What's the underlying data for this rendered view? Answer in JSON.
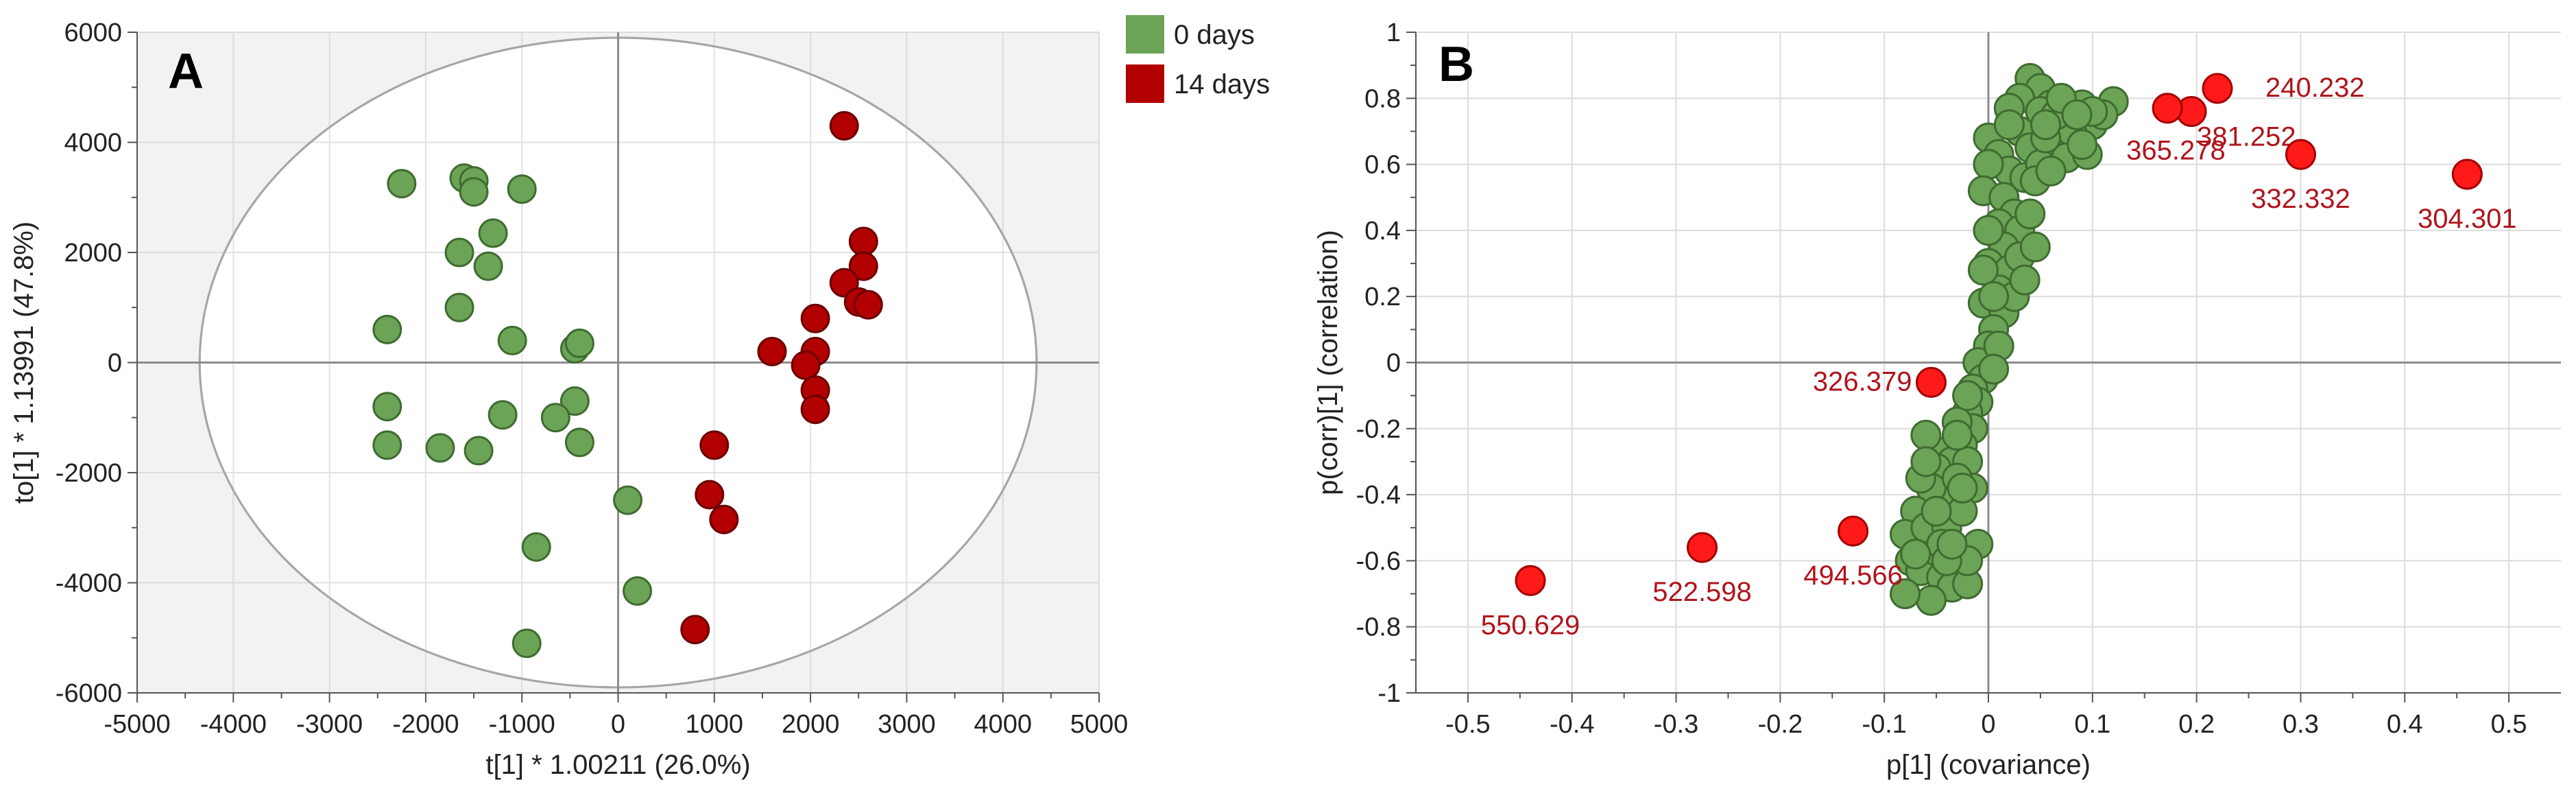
{
  "colors": {
    "group0": "#6ba357",
    "group0_stroke": "#3f6b30",
    "group14": "#b20000",
    "group14_stroke": "#6a0000",
    "highlight": "#ff1a1a",
    "highlight_stroke": "#a40000",
    "label": "#b0141c",
    "plot_bg": "#f2f2f2",
    "grid": "#dcdcdc",
    "axis_zero": "#8c8c8c",
    "ellipse": "#a6a6a6"
  },
  "legend": {
    "items": [
      {
        "label": "0 days",
        "color": "#6ba357"
      },
      {
        "label": "14 days",
        "color": "#b20000"
      }
    ]
  },
  "chart_data": [
    {
      "panel": "A",
      "type": "scatter",
      "xlabel": "t[1] * 1.00211 (26.0%)",
      "ylabel": "to[1] * 1.13991 (47.8%)",
      "xlim": [
        -5000,
        5000
      ],
      "ylim": [
        -6000,
        6000
      ],
      "xticks": [
        -5000,
        -4000,
        -3000,
        -2000,
        -1000,
        0,
        1000,
        2000,
        3000,
        4000,
        5000
      ],
      "yticks": [
        -6000,
        -4000,
        -2000,
        0,
        2000,
        4000,
        6000
      ],
      "ellipse": {
        "rx": 4350,
        "ry": 5900
      },
      "series": [
        {
          "name": "0 days",
          "points": [
            [
              -2250,
              3250
            ],
            [
              -1600,
              3350
            ],
            [
              -1500,
              3300
            ],
            [
              -1500,
              3100
            ],
            [
              -1000,
              3150
            ],
            [
              -1650,
              2000
            ],
            [
              -1300,
              2350
            ],
            [
              -1350,
              1750
            ],
            [
              -1650,
              1000
            ],
            [
              -2400,
              600
            ],
            [
              -1100,
              400
            ],
            [
              -450,
              250
            ],
            [
              -400,
              350
            ],
            [
              -2400,
              -800
            ],
            [
              -450,
              -700
            ],
            [
              -650,
              -1000
            ],
            [
              -1200,
              -950
            ],
            [
              -2400,
              -1500
            ],
            [
              -1850,
              -1550
            ],
            [
              -1450,
              -1600
            ],
            [
              -400,
              -1450
            ],
            [
              -850,
              -3350
            ],
            [
              -950,
              -5100
            ],
            [
              100,
              -2500
            ],
            [
              200,
              -4150
            ]
          ]
        },
        {
          "name": "14 days",
          "points": [
            [
              2350,
              4300
            ],
            [
              2550,
              2200
            ],
            [
              2550,
              1750
            ],
            [
              2350,
              1450
            ],
            [
              2500,
              1100
            ],
            [
              2600,
              1050
            ],
            [
              2050,
              800
            ],
            [
              1600,
              200
            ],
            [
              2050,
              200
            ],
            [
              1950,
              -50
            ],
            [
              2050,
              -500
            ],
            [
              2050,
              -850
            ],
            [
              1000,
              -1500
            ],
            [
              950,
              -2400
            ],
            [
              1100,
              -2850
            ],
            [
              800,
              -4850
            ]
          ]
        }
      ]
    },
    {
      "panel": "B",
      "type": "scatter",
      "xlabel": "p[1] (covariance)",
      "ylabel": "p(corr)[1] (correlation)",
      "xlim": [
        -0.55,
        0.55
      ],
      "ylim": [
        -1,
        1
      ],
      "xticks": [
        -0.5,
        -0.4,
        -0.3,
        -0.2,
        -0.1,
        0,
        0.1,
        0.2,
        0.3,
        0.4,
        0.5
      ],
      "yticks": [
        -1,
        -0.8,
        -0.6,
        -0.4,
        -0.2,
        0,
        0.2,
        0.4,
        0.6,
        0.8,
        1
      ],
      "highlighted": [
        {
          "label": "240.232",
          "x": 0.22,
          "y": 0.83
        },
        {
          "label": "381.252",
          "x": 0.195,
          "y": 0.76
        },
        {
          "label": "365.278",
          "x": 0.172,
          "y": 0.77
        },
        {
          "label": "332.332",
          "x": 0.3,
          "y": 0.63
        },
        {
          "label": "304.301",
          "x": 0.46,
          "y": 0.57
        },
        {
          "label": "326.379",
          "x": -0.055,
          "y": -0.06
        },
        {
          "label": "494.566",
          "x": -0.13,
          "y": -0.51
        },
        {
          "label": "522.598",
          "x": -0.275,
          "y": -0.56
        },
        {
          "label": "550.629",
          "x": -0.44,
          "y": -0.66
        }
      ],
      "cloud": {
        "name": "variables",
        "points": [
          [
            0.04,
            0.86
          ],
          [
            0.05,
            0.83
          ],
          [
            0.03,
            0.8
          ],
          [
            0.06,
            0.78
          ],
          [
            0.08,
            0.76
          ],
          [
            0.12,
            0.79
          ],
          [
            0.1,
            0.72
          ],
          [
            0.09,
            0.78
          ],
          [
            0.07,
            0.72
          ],
          [
            0.05,
            0.76
          ],
          [
            0.03,
            0.7
          ],
          [
            0.02,
            0.77
          ],
          [
            0.0,
            0.68
          ],
          [
            0.01,
            0.63
          ],
          [
            0.04,
            0.65
          ],
          [
            0.06,
            0.64
          ],
          [
            0.08,
            0.7
          ],
          [
            0.11,
            0.75
          ],
          [
            0.075,
            0.62
          ],
          [
            0.095,
            0.63
          ],
          [
            0.02,
            0.58
          ],
          [
            0.0,
            0.6
          ],
          [
            -0.005,
            0.52
          ],
          [
            0.015,
            0.5
          ],
          [
            0.035,
            0.56
          ],
          [
            0.05,
            0.6
          ],
          [
            0.025,
            0.45
          ],
          [
            0.01,
            0.42
          ],
          [
            0.03,
            0.4
          ],
          [
            0.015,
            0.35
          ],
          [
            0.0,
            0.3
          ],
          [
            0.02,
            0.28
          ],
          [
            0.01,
            0.22
          ],
          [
            -0.005,
            0.18
          ],
          [
            0.015,
            0.15
          ],
          [
            0.005,
            0.1
          ],
          [
            0.0,
            0.05
          ],
          [
            -0.01,
            0.0
          ],
          [
            -0.005,
            -0.05
          ],
          [
            -0.015,
            -0.08
          ],
          [
            -0.01,
            -0.12
          ],
          [
            -0.02,
            -0.15
          ],
          [
            -0.015,
            -0.2
          ],
          [
            -0.03,
            -0.18
          ],
          [
            -0.025,
            -0.25
          ],
          [
            -0.04,
            -0.27
          ],
          [
            -0.035,
            -0.3
          ],
          [
            -0.05,
            -0.32
          ],
          [
            -0.02,
            -0.3
          ],
          [
            -0.015,
            -0.38
          ],
          [
            -0.03,
            -0.4
          ],
          [
            -0.045,
            -0.42
          ],
          [
            -0.055,
            -0.38
          ],
          [
            -0.065,
            -0.35
          ],
          [
            -0.06,
            -0.22
          ],
          [
            -0.06,
            -0.3
          ],
          [
            -0.07,
            -0.45
          ],
          [
            -0.08,
            -0.52
          ],
          [
            -0.075,
            -0.6
          ],
          [
            -0.065,
            -0.63
          ],
          [
            -0.05,
            -0.57
          ],
          [
            -0.045,
            -0.65
          ],
          [
            -0.035,
            -0.68
          ],
          [
            -0.02,
            -0.67
          ],
          [
            -0.055,
            -0.72
          ],
          [
            -0.08,
            -0.7
          ],
          [
            -0.06,
            -0.5
          ],
          [
            -0.04,
            -0.5
          ],
          [
            -0.025,
            -0.45
          ],
          [
            -0.03,
            -0.35
          ],
          [
            0.025,
            0.2
          ],
          [
            0.03,
            0.32
          ],
          [
            0.04,
            0.45
          ],
          [
            0.045,
            0.55
          ],
          [
            0.055,
            0.68
          ],
          [
            0.065,
            0.75
          ],
          [
            0.1,
            0.76
          ],
          [
            0.07,
            0.8
          ],
          [
            0.02,
            0.72
          ],
          [
            0.0,
            0.4
          ],
          [
            -0.005,
            0.28
          ],
          [
            0.005,
            0.2
          ],
          [
            -0.02,
            -0.1
          ],
          [
            -0.03,
            -0.22
          ],
          [
            -0.045,
            -0.55
          ],
          [
            -0.07,
            -0.58
          ],
          [
            -0.01,
            -0.55
          ],
          [
            -0.02,
            -0.6
          ],
          [
            0.01,
            0.05
          ],
          [
            0.005,
            -0.02
          ],
          [
            0.035,
            0.25
          ],
          [
            0.045,
            0.35
          ],
          [
            -0.04,
            -0.6
          ],
          [
            0.055,
            0.72
          ],
          [
            0.09,
            0.66
          ],
          [
            0.085,
            0.75
          ],
          [
            0.06,
            0.58
          ],
          [
            -0.025,
            -0.38
          ],
          [
            -0.05,
            -0.45
          ],
          [
            -0.035,
            -0.55
          ]
        ]
      }
    }
  ]
}
